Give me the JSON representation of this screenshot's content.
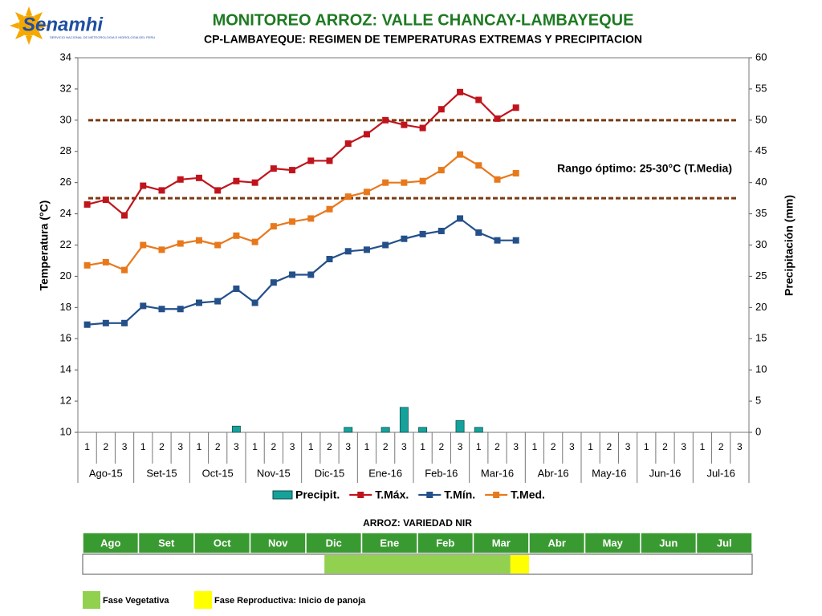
{
  "logo": {
    "name": "Senamhi",
    "tagline": "SERVICIO NACIONAL DE METEOROLOGIA E HIDROLOGIA DEL PERU"
  },
  "chart_data": {
    "type": "line",
    "title": "MONITOREO ARROZ: VALLE CHANCAY-LAMBAYEQUE",
    "subtitle": "CP-LAMBAYEQUE: REGIMEN DE TEMPERATURAS EXTREMAS Y PRECIPITACION",
    "y_label": "Temperatura (°C)",
    "y2_label": "Precipitación (mm)",
    "categories": [
      "1",
      "2",
      "3",
      "1",
      "2",
      "3",
      "1",
      "2",
      "3",
      "1",
      "2",
      "3",
      "1",
      "2",
      "3",
      "1",
      "2",
      "3",
      "1",
      "2",
      "3",
      "1",
      "2",
      "3",
      "1",
      "2",
      "3",
      "1",
      "2",
      "3",
      "1",
      "2",
      "3",
      "1",
      "2",
      "3"
    ],
    "months": [
      "Ago-15",
      "Set-15",
      "Oct-15",
      "Nov-15",
      "Dic-15",
      "Ene-16",
      "Feb-16",
      "Mar-16",
      "Abr-16",
      "May-16",
      "Jun-16",
      "Jul-16"
    ],
    "ylim": [
      10,
      34
    ],
    "yticks": [
      10,
      12,
      14,
      16,
      18,
      20,
      22,
      24,
      26,
      28,
      30,
      32,
      34
    ],
    "y2lim": [
      0,
      60
    ],
    "y2ticks": [
      0,
      5,
      10,
      15,
      20,
      25,
      30,
      35,
      40,
      45,
      50,
      55,
      60
    ],
    "series": [
      {
        "name": "Precipit.",
        "type": "bar",
        "axis": "y2",
        "color": "#17a19b",
        "values": [
          0,
          0,
          0,
          0,
          0,
          0,
          0,
          0,
          1,
          0,
          0,
          0,
          0,
          0,
          0.8,
          0,
          0.8,
          4,
          0.8,
          0,
          1.9,
          0.8,
          0,
          0,
          null,
          null,
          null,
          null,
          null,
          null,
          null,
          null,
          null,
          null,
          null,
          null
        ]
      },
      {
        "name": "T.Máx.",
        "type": "line",
        "color": "#c0141c",
        "values": [
          24.6,
          24.9,
          23.9,
          25.8,
          25.5,
          26.2,
          26.3,
          25.5,
          26.1,
          26.0,
          26.9,
          26.8,
          27.4,
          27.4,
          28.5,
          29.1,
          30.0,
          29.7,
          29.5,
          30.7,
          31.8,
          31.3,
          30.1,
          30.8,
          null,
          null,
          null,
          null,
          null,
          null,
          null,
          null,
          null,
          null,
          null,
          null
        ]
      },
      {
        "name": "T.Mín.",
        "type": "line",
        "color": "#24508a",
        "values": [
          16.9,
          17.0,
          17.0,
          18.1,
          17.9,
          17.9,
          18.3,
          18.4,
          19.2,
          18.3,
          19.6,
          20.1,
          20.1,
          21.1,
          21.6,
          21.7,
          22.0,
          22.4,
          22.7,
          22.9,
          23.7,
          22.8,
          22.3,
          22.3,
          null,
          null,
          null,
          null,
          null,
          null,
          null,
          null,
          null,
          null,
          null,
          null
        ]
      },
      {
        "name": "T.Med.",
        "type": "line",
        "color": "#e8781c",
        "values": [
          20.7,
          20.9,
          20.4,
          22.0,
          21.7,
          22.1,
          22.3,
          22.0,
          22.6,
          22.2,
          23.2,
          23.5,
          23.7,
          24.3,
          25.1,
          25.4,
          26.0,
          26.0,
          26.1,
          26.8,
          27.8,
          27.1,
          26.2,
          26.6,
          null,
          null,
          null,
          null,
          null,
          null,
          null,
          null,
          null,
          null,
          null,
          null
        ]
      }
    ],
    "reference_lines": [
      25,
      30
    ],
    "reference_color": "#7a3a10",
    "annotation": "Rango óptimo: 25-30°C (T.Media)"
  },
  "phenology": {
    "title": "ARROZ: VARIEDAD NIR",
    "months": [
      "Ago",
      "Set",
      "Oct",
      "Nov",
      "Dic",
      "Ene",
      "Feb",
      "Mar",
      "Abr",
      "May",
      "Jun",
      "Jul"
    ],
    "header_color": "#3a9a32",
    "phases": [
      {
        "name": "Fase Vegetativa",
        "color": "#92d050",
        "start_dekad": 13,
        "end_dekad": 23
      },
      {
        "name": "Fase Reproductiva: Inicio de panoja",
        "color": "#ffff00",
        "start_dekad": 23,
        "end_dekad": 24
      }
    ]
  }
}
